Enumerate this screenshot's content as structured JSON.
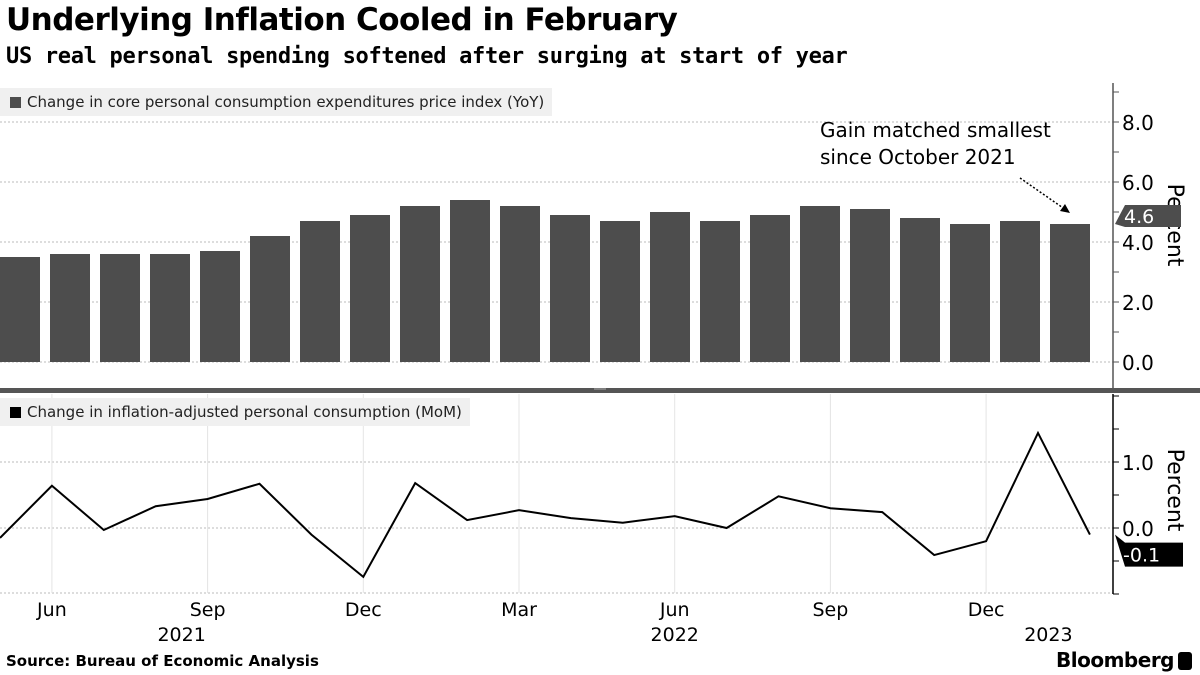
{
  "header": {
    "title": "Underlying Inflation Cooled in February",
    "subtitle": "US real personal spending softened after surging at start of year"
  },
  "footer": {
    "source": "Source: Bureau of Economic Analysis",
    "brand": "Bloomberg"
  },
  "colors": {
    "bar": "#4d4d4d",
    "line": "#000000",
    "axis": "#555555"
  },
  "chart_data": [
    {
      "type": "bar",
      "legend": "Change in core personal consumption expenditures price index (YoY)",
      "ylabel": "Percent",
      "ylim": [
        -0.8,
        9.3
      ],
      "yticks": [
        "0.0",
        "2.0",
        "4.0",
        "6.0",
        "8.0"
      ],
      "ytick_values": [
        0,
        2,
        4,
        6,
        8
      ],
      "categories": [
        "May 2021",
        "Jun 2021",
        "Jul 2021",
        "Aug 2021",
        "Sep 2021",
        "Oct 2021",
        "Nov 2021",
        "Dec 2021",
        "Jan 2022",
        "Feb 2022",
        "Mar 2022",
        "Apr 2022",
        "May 2022",
        "Jun 2022",
        "Jul 2022",
        "Aug 2022",
        "Sep 2022",
        "Oct 2022",
        "Nov 2022",
        "Dec 2022",
        "Jan 2023",
        "Feb 2023"
      ],
      "values": [
        3.5,
        3.6,
        3.6,
        3.6,
        3.7,
        4.2,
        4.7,
        4.9,
        5.2,
        5.4,
        5.2,
        4.9,
        4.7,
        5.0,
        4.7,
        4.9,
        5.2,
        5.1,
        4.8,
        4.6,
        4.7,
        4.6
      ],
      "last_value_label": "4.6",
      "annotation": [
        "Gain matched smallest",
        "since October 2021"
      ]
    },
    {
      "type": "line",
      "legend": "Change in inflation-adjusted personal consumption (MoM)",
      "ylabel": "Percent",
      "ylim": [
        -1.0,
        2.0
      ],
      "yticks": [
        "1.0",
        "0.0"
      ],
      "ytick_values": [
        1,
        0
      ],
      "categories": [
        "May 2021",
        "Jun 2021",
        "Jul 2021",
        "Aug 2021",
        "Sep 2021",
        "Oct 2021",
        "Nov 2021",
        "Dec 2021",
        "Jan 2022",
        "Feb 2022",
        "Mar 2022",
        "Apr 2022",
        "May 2022",
        "Jun 2022",
        "Jul 2022",
        "Aug 2022",
        "Sep 2022",
        "Oct 2022",
        "Nov 2022",
        "Dec 2022",
        "Jan 2023",
        "Feb 2023"
      ],
      "values": [
        -0.15,
        0.64,
        -0.03,
        0.33,
        0.44,
        0.67,
        -0.1,
        -0.74,
        0.68,
        0.12,
        0.27,
        0.15,
        0.08,
        0.18,
        0.0,
        0.48,
        0.3,
        0.24,
        -0.41,
        -0.2,
        1.44,
        -0.1
      ],
      "last_value_label": "-0.1"
    }
  ],
  "xaxis": {
    "months": [
      {
        "label": "Jun",
        "i": 1
      },
      {
        "label": "Sep",
        "i": 4
      },
      {
        "label": "Dec",
        "i": 7
      },
      {
        "label": "Mar",
        "i": 10
      },
      {
        "label": "Jun",
        "i": 13
      },
      {
        "label": "Sep",
        "i": 16
      },
      {
        "label": "Dec",
        "i": 19
      }
    ],
    "years": [
      {
        "label": "2021",
        "i": 3.5
      },
      {
        "label": "2022",
        "i": 13
      },
      {
        "label": "2023",
        "i": 20.2
      }
    ]
  }
}
